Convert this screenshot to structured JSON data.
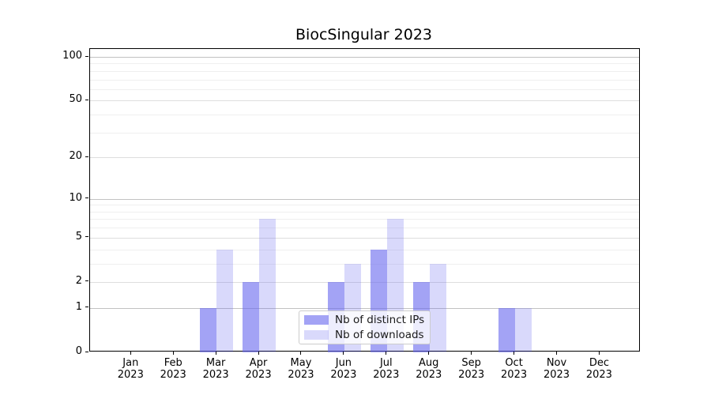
{
  "title": "BiocSingular 2023",
  "chart_data": {
    "type": "bar",
    "title": "BiocSingular 2023",
    "months": [
      "Jan",
      "Feb",
      "Mar",
      "Apr",
      "May",
      "Jun",
      "Jul",
      "Aug",
      "Sep",
      "Oct",
      "Nov",
      "Dec"
    ],
    "year_label": "2023",
    "series": [
      {
        "name": "Nb of distinct IPs",
        "color": "rgba(102,102,238,0.6)",
        "values": [
          0,
          0,
          1,
          2,
          0,
          2,
          4,
          2,
          0,
          1,
          0,
          0
        ]
      },
      {
        "name": "Nb of downloads",
        "color": "rgba(102,102,238,0.25)",
        "values": [
          0,
          0,
          4,
          7,
          0,
          3,
          7,
          3,
          0,
          1,
          0,
          0
        ]
      }
    ],
    "y_axis": {
      "scale": "log1p",
      "tick_values": [
        0,
        1,
        2,
        5,
        10,
        20,
        50,
        100
      ],
      "minor_grid_values": [
        3,
        4,
        6,
        7,
        8,
        9,
        30,
        40,
        60,
        70,
        80,
        90
      ],
      "ylim": [
        0,
        113
      ]
    },
    "grid": "horizontal",
    "legend_position": "lower center"
  },
  "colors": {
    "background": "#ffffff",
    "spine": "#000000",
    "grid_major": "#c2c2c2",
    "grid_mid": "#dedede",
    "grid_minor": "#efefef",
    "bar_base": "#6666ee",
    "text": "#000000",
    "legend_border": "#cccccc"
  }
}
